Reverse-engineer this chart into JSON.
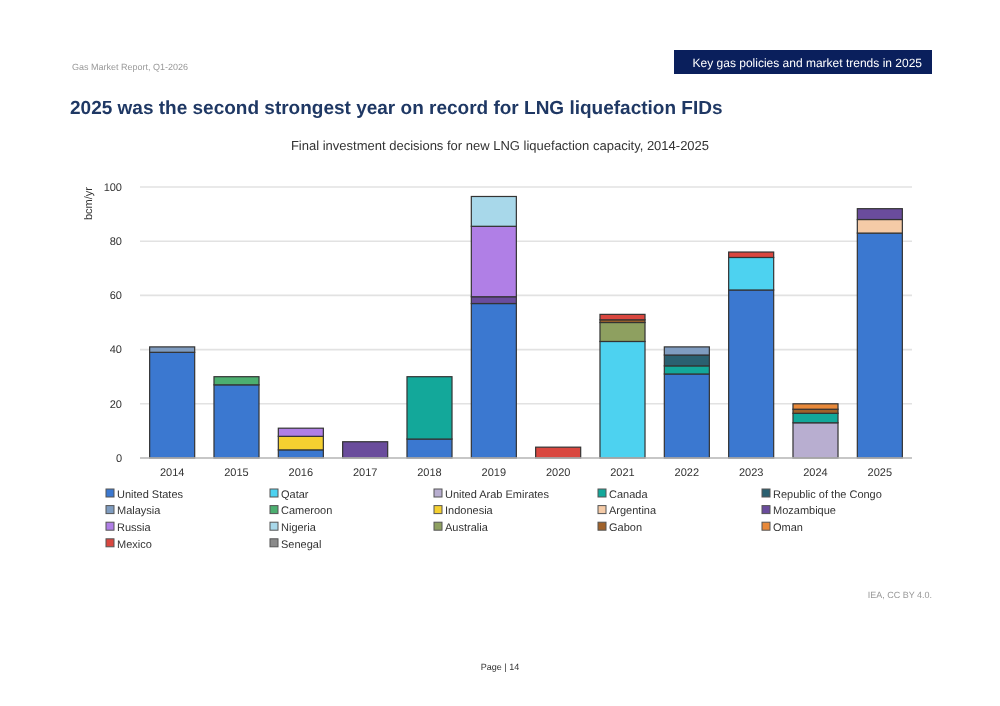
{
  "chart_data": {
    "type": "bar",
    "stacked": true,
    "title": "2025 was the second strongest year on record for LNG liquefaction FIDs",
    "subtitle": "Final investment decisions for new LNG liquefaction capacity, 2014-2025",
    "ylabel": "bcm/yr",
    "annotations": [
      "Gas Market Report, Q1-2026",
      "Key gas policies and market trends in 2025",
      "IEA, CC BY 4.0.",
      "Page | 14"
    ],
    "categories": [
      "2014",
      "2015",
      "2016",
      "2017",
      "2018",
      "2019",
      "2020",
      "2021",
      "2022",
      "2023",
      "2024",
      "2025"
    ],
    "ylim": [
      0,
      100
    ],
    "yticks": [
      0,
      20,
      40,
      60,
      80,
      100
    ],
    "grid": "y",
    "legend": "bottom",
    "series": [
      {
        "name": "United States",
        "color": "#3b78d0",
        "values": [
          39,
          27,
          3,
          null,
          7,
          57,
          null,
          null,
          31,
          62,
          null,
          83
        ]
      },
      {
        "name": "Qatar",
        "color": "#4dd2f0",
        "values": [
          null,
          null,
          null,
          null,
          null,
          null,
          null,
          43,
          null,
          12,
          null,
          null
        ]
      },
      {
        "name": "United Arab Emirates",
        "color": "#b8aed0",
        "values": [
          null,
          null,
          null,
          null,
          null,
          null,
          null,
          null,
          null,
          null,
          13,
          null
        ]
      },
      {
        "name": "Canada",
        "color": "#13a89a",
        "values": [
          null,
          null,
          null,
          null,
          23,
          null,
          null,
          null,
          3,
          null,
          3.5,
          null
        ]
      },
      {
        "name": "Republic of the Congo",
        "color": "#2a6070",
        "values": [
          null,
          null,
          null,
          null,
          null,
          null,
          null,
          null,
          4,
          null,
          null,
          null
        ]
      },
      {
        "name": "Malaysia",
        "color": "#7f9cc0",
        "values": [
          2,
          null,
          null,
          null,
          null,
          null,
          null,
          null,
          3,
          null,
          null,
          null
        ]
      },
      {
        "name": "Cameroon",
        "color": "#4caf70",
        "values": [
          null,
          3,
          null,
          null,
          null,
          null,
          null,
          null,
          null,
          null,
          null,
          null
        ]
      },
      {
        "name": "Indonesia",
        "color": "#f5d030",
        "values": [
          null,
          null,
          5,
          null,
          null,
          null,
          null,
          null,
          null,
          null,
          null,
          null
        ]
      },
      {
        "name": "Argentina",
        "color": "#f5cba7",
        "values": [
          null,
          null,
          null,
          null,
          null,
          null,
          null,
          null,
          null,
          null,
          null,
          5
        ]
      },
      {
        "name": "Mozambique",
        "color": "#6a4c9c",
        "values": [
          null,
          null,
          null,
          6,
          null,
          2.5,
          null,
          null,
          null,
          null,
          null,
          4
        ]
      },
      {
        "name": "Russia",
        "color": "#b07fe6",
        "values": [
          null,
          null,
          3,
          null,
          null,
          26,
          null,
          null,
          null,
          null,
          null,
          null
        ]
      },
      {
        "name": "Nigeria",
        "color": "#a8d8ea",
        "values": [
          null,
          null,
          null,
          null,
          null,
          11,
          null,
          null,
          null,
          null,
          null,
          null
        ]
      },
      {
        "name": "Australia",
        "color": "#8ea060",
        "values": [
          null,
          null,
          null,
          null,
          null,
          null,
          null,
          7,
          null,
          null,
          null,
          null
        ]
      },
      {
        "name": "Gabon",
        "color": "#a0622a",
        "values": [
          null,
          null,
          null,
          null,
          null,
          null,
          null,
          1,
          null,
          null,
          1.5,
          null
        ]
      },
      {
        "name": "Oman",
        "color": "#e8893a",
        "values": [
          null,
          null,
          null,
          null,
          null,
          null,
          null,
          null,
          null,
          null,
          2,
          null
        ]
      },
      {
        "name": "Mexico",
        "color": "#d9473f",
        "values": [
          null,
          null,
          null,
          null,
          null,
          null,
          4,
          2,
          null,
          2,
          null,
          null
        ]
      },
      {
        "name": "Senegal",
        "color": "#8a8a8a",
        "values": [
          null,
          null,
          null,
          null,
          null,
          null,
          null,
          null,
          null,
          null,
          null,
          null
        ]
      }
    ]
  }
}
